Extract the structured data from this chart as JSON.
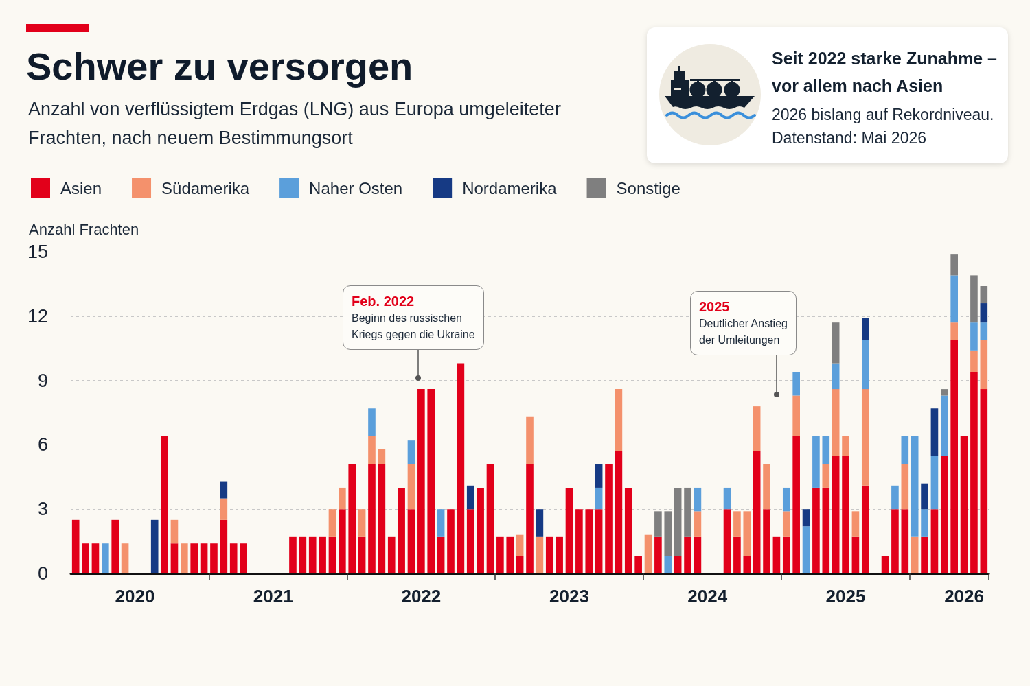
{
  "chart_data": [
    {
      "type": "bar",
      "title": "Schwer zu versorgen",
      "subtitle": "Anzahl von verflüssigtem Erdgas (LNG) aus Europa umgeleiteter\nFrachten, nach neuem Bestimmungsort",
      "ylabel": "Anzahl Frachten",
      "categories": [
        null,
        null,
        null,
        null,
        null,
        null,
        "2020",
        null,
        null,
        null,
        null,
        null,
        null,
        null,
        null,
        null,
        null,
        null,
        null,
        null,
        "2021",
        null,
        null,
        null,
        null,
        null,
        null,
        null,
        null,
        null,
        null,
        null,
        null,
        null,
        null,
        "2022",
        null,
        null,
        null,
        null,
        null,
        null,
        null,
        null,
        null,
        null,
        null,
        null,
        null,
        null,
        "2023",
        null,
        null,
        null,
        null,
        null,
        null,
        null,
        null,
        null,
        null,
        null,
        null,
        null,
        "2024",
        null,
        null,
        null,
        null,
        null,
        null,
        null,
        null,
        null,
        null,
        null,
        null,
        null,
        "2025",
        null,
        null,
        null,
        null,
        null,
        null,
        null,
        null,
        null,
        null,
        null,
        "2026",
        null,
        null
      ],
      "series": [
        {
          "name": "Asien",
          "color": "#e2001a",
          "values": [
            2.5,
            1.4,
            1.4,
            null,
            2.5,
            null,
            null,
            null,
            null,
            6.4,
            1.4,
            null,
            1.4,
            1.4,
            1.4,
            2.5,
            1.4,
            1.4,
            null,
            null,
            null,
            null,
            1.7,
            1.7,
            1.7,
            1.7,
            1.7,
            3.0,
            5.1,
            1.7,
            5.1,
            5.1,
            1.7,
            4.0,
            3.0,
            8.6,
            8.6,
            1.7,
            3.0,
            9.8,
            3.0,
            4.0,
            5.1,
            1.7,
            1.7,
            0.8,
            5.1,
            null,
            1.7,
            1.7,
            4.0,
            3.0,
            3.0,
            3.0,
            5.1,
            5.7,
            4.0,
            0.8,
            null,
            1.7,
            null,
            0.8,
            1.7,
            1.7,
            null,
            null,
            3.0,
            1.7,
            0.8,
            5.7,
            3.0,
            1.7,
            1.7,
            6.4,
            null,
            4.0,
            4.0,
            5.5,
            5.5,
            1.7,
            4.1,
            null,
            0.8,
            3.0,
            3.0,
            null,
            1.7,
            3.0,
            5.5,
            10.9,
            6.4,
            9.4,
            8.6
          ]
        },
        {
          "name": "Südamerika",
          "color": "#f4916c",
          "values": [
            null,
            null,
            null,
            null,
            null,
            1.4,
            null,
            null,
            null,
            null,
            1.1,
            1.4,
            null,
            null,
            null,
            1.0,
            null,
            null,
            null,
            null,
            null,
            null,
            null,
            null,
            null,
            null,
            1.3,
            1.0,
            null,
            1.3,
            1.3,
            0.7,
            null,
            null,
            2.1,
            null,
            null,
            null,
            null,
            null,
            null,
            null,
            null,
            null,
            null,
            1.0,
            2.2,
            1.7,
            null,
            null,
            null,
            null,
            null,
            null,
            null,
            2.9,
            null,
            null,
            1.8,
            null,
            null,
            null,
            null,
            1.2,
            null,
            null,
            null,
            1.2,
            2.1,
            2.1,
            2.1,
            null,
            1.2,
            1.9,
            null,
            null,
            1.1,
            3.1,
            0.9,
            1.2,
            4.5,
            null,
            null,
            null,
            2.1,
            1.7,
            null,
            null,
            null,
            0.8,
            null,
            1.0,
            2.3
          ]
        },
        {
          "name": "Naher Osten",
          "color": "#5b9fdb",
          "values": [
            null,
            null,
            null,
            1.4,
            null,
            null,
            null,
            null,
            null,
            null,
            null,
            null,
            null,
            null,
            null,
            null,
            null,
            null,
            null,
            null,
            null,
            null,
            null,
            null,
            null,
            null,
            null,
            null,
            null,
            null,
            1.3,
            null,
            null,
            null,
            1.1,
            null,
            null,
            1.3,
            null,
            null,
            null,
            null,
            null,
            null,
            null,
            null,
            null,
            null,
            null,
            null,
            null,
            null,
            null,
            1.0,
            null,
            null,
            null,
            null,
            null,
            null,
            0.8,
            null,
            null,
            1.1,
            null,
            null,
            1.0,
            null,
            null,
            null,
            null,
            null,
            1.1,
            1.1,
            2.2,
            2.4,
            1.3,
            1.2,
            null,
            null,
            2.3,
            null,
            null,
            1.1,
            1.3,
            4.7,
            1.3,
            2.5,
            2.8,
            2.2,
            null,
            1.3,
            0.8
          ]
        },
        {
          "name": "Nordamerika",
          "color": "#163a84",
          "values": [
            null,
            null,
            null,
            null,
            null,
            null,
            null,
            null,
            2.5,
            null,
            null,
            null,
            null,
            null,
            null,
            0.8,
            null,
            null,
            null,
            null,
            null,
            null,
            null,
            null,
            null,
            null,
            null,
            null,
            null,
            null,
            null,
            null,
            null,
            null,
            null,
            null,
            null,
            null,
            null,
            null,
            1.1,
            null,
            null,
            null,
            null,
            null,
            null,
            1.3,
            null,
            null,
            null,
            null,
            null,
            1.1,
            null,
            null,
            null,
            null,
            null,
            null,
            null,
            null,
            null,
            null,
            null,
            null,
            null,
            null,
            null,
            null,
            null,
            null,
            null,
            null,
            0.8,
            null,
            null,
            null,
            null,
            null,
            1.0,
            null,
            null,
            null,
            null,
            null,
            1.2,
            2.2,
            null,
            null,
            null,
            null,
            0.9
          ]
        },
        {
          "name": "Sonstige",
          "color": "#7f7f7f",
          "values": [
            null,
            null,
            null,
            null,
            null,
            null,
            null,
            null,
            null,
            null,
            null,
            null,
            null,
            null,
            null,
            null,
            null,
            null,
            null,
            null,
            null,
            null,
            null,
            null,
            null,
            null,
            null,
            null,
            null,
            null,
            null,
            null,
            null,
            null,
            null,
            null,
            null,
            null,
            null,
            null,
            null,
            null,
            null,
            null,
            null,
            null,
            null,
            null,
            null,
            null,
            null,
            null,
            null,
            null,
            null,
            null,
            null,
            null,
            null,
            1.2,
            2.1,
            3.2,
            2.3,
            null,
            null,
            null,
            null,
            null,
            null,
            null,
            null,
            null,
            null,
            null,
            null,
            null,
            null,
            1.9,
            null,
            null,
            null,
            null,
            null,
            null,
            null,
            null,
            null,
            null,
            0.3,
            1.0,
            null,
            2.2,
            0.8
          ]
        }
      ],
      "stacked": true,
      "ylim": [
        0,
        15
      ],
      "yticks": [
        0,
        3,
        6,
        9,
        12,
        15
      ],
      "grid": "y",
      "legend": "top left",
      "annotations": [
        "Feb. 2022\nBeginn des russischen\nKriegs gegen die Ukraine",
        "2025\nDeutlicher Anstieg\nder Umleitungen"
      ]
    },
    {
      "type": "other",
      "title": "Seit 2022 starke Zunahme –\nvor allem nach Asien",
      "annotations": [
        "2026 bislang auf Rekordniveau.",
        "Datenstand: Mai 2026"
      ]
    }
  ]
}
